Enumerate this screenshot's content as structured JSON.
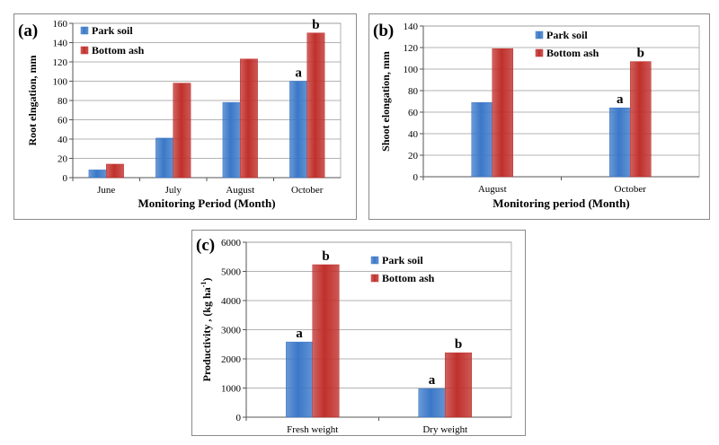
{
  "chart_data": [
    {
      "type": "bar",
      "panel_label": "(a)",
      "categories": [
        "June",
        "July",
        "August",
        "October"
      ],
      "series": [
        {
          "name": "Park soil",
          "values": [
            8,
            41,
            78,
            100
          ],
          "color": "#3b78c8"
        },
        {
          "name": "Bottom ash",
          "values": [
            14,
            98,
            123,
            150
          ],
          "color": "#c0302c"
        }
      ],
      "annotations": [
        {
          "category": "October",
          "series": "Park soil",
          "text": "a"
        },
        {
          "category": "October",
          "series": "Bottom ash",
          "text": "b"
        }
      ],
      "xlabel": "Monitoring Period (Month)",
      "ylabel": "Root elngation,  mm",
      "ylim": [
        0,
        160
      ],
      "yticks": [
        0,
        20,
        40,
        60,
        80,
        100,
        120,
        140,
        160
      ],
      "grid": true,
      "legend": "top-left"
    },
    {
      "type": "bar",
      "panel_label": "(b)",
      "categories": [
        "August",
        "October"
      ],
      "series": [
        {
          "name": "Park soil",
          "values": [
            69,
            64
          ],
          "color": "#3b78c8"
        },
        {
          "name": "Bottom ash",
          "values": [
            119,
            107
          ],
          "color": "#c0302c"
        }
      ],
      "annotations": [
        {
          "category": "October",
          "series": "Park soil",
          "text": "a"
        },
        {
          "category": "October",
          "series": "Bottom ash",
          "text": "b"
        }
      ],
      "xlabel": "Monitoring period (Month)",
      "ylabel": "Shoot elongation, mm",
      "ylim": [
        0,
        140
      ],
      "yticks": [
        0,
        20,
        40,
        60,
        80,
        100,
        120,
        140
      ],
      "grid": true,
      "legend": "top-right"
    },
    {
      "type": "bar",
      "panel_label": "(c)",
      "categories": [
        "Fresh weight",
        "Dry weight"
      ],
      "series": [
        {
          "name": "Park soil",
          "values": [
            2580,
            980
          ],
          "color": "#3b78c8"
        },
        {
          "name": "Bottom ash",
          "values": [
            5230,
            2210
          ],
          "color": "#c0302c"
        }
      ],
      "annotations": [
        {
          "category": "Fresh weight",
          "series": "Park soil",
          "text": "a"
        },
        {
          "category": "Fresh weight",
          "series": "Bottom ash",
          "text": "b"
        },
        {
          "category": "Dry weight",
          "series": "Park soil",
          "text": "a"
        },
        {
          "category": "Dry weight",
          "series": "Bottom ash",
          "text": "b"
        }
      ],
      "xlabel": "",
      "ylabel": "Productivity ,  (kg ha",
      "ylabel_superscript": "-1",
      "ylabel_suffix": ")",
      "ylim": [
        0,
        6000
      ],
      "yticks": [
        0,
        1000,
        2000,
        3000,
        4000,
        5000,
        6000
      ],
      "grid": true,
      "legend": "top-right"
    }
  ]
}
